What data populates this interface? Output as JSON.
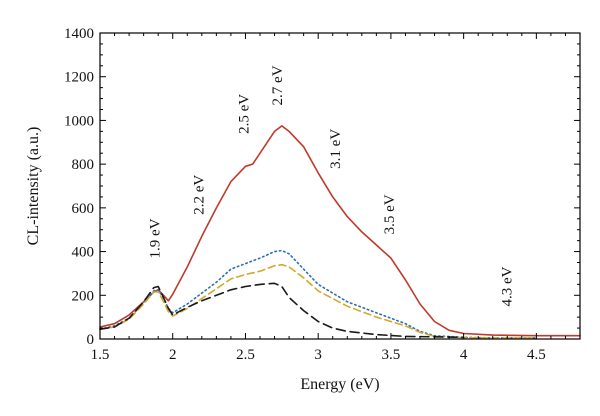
{
  "chart_data": {
    "type": "line",
    "title": "",
    "xlabel": "Energy (eV)",
    "ylabel": "CL-intensity (a.u.)",
    "xlim": [
      1.5,
      4.8
    ],
    "ylim": [
      0,
      1400
    ],
    "x_ticks": [
      1.5,
      2,
      2.5,
      3,
      3.5,
      4,
      4.5
    ],
    "x_tick_labels": [
      "1.5",
      "2",
      "2.5",
      "3",
      "3.5",
      "4",
      "4.5"
    ],
    "y_ticks": [
      0,
      200,
      400,
      600,
      800,
      1000,
      1200,
      1400
    ],
    "y_tick_labels": [
      "0",
      "200",
      "400",
      "600",
      "800",
      "1000",
      "1200",
      "1400"
    ],
    "grid": false,
    "series": [
      {
        "color": "#c0392b",
        "dash": "solid",
        "x": [
          1.5,
          1.6,
          1.7,
          1.8,
          1.87,
          1.9,
          1.93,
          1.97,
          2.0,
          2.1,
          2.2,
          2.3,
          2.4,
          2.5,
          2.55,
          2.6,
          2.7,
          2.75,
          2.8,
          2.9,
          3.0,
          3.1,
          3.2,
          3.3,
          3.4,
          3.5,
          3.6,
          3.7,
          3.8,
          3.9,
          4.0,
          4.2,
          4.5,
          4.8
        ],
        "y": [
          55,
          70,
          110,
          170,
          215,
          225,
          205,
          175,
          205,
          330,
          470,
          600,
          720,
          790,
          800,
          850,
          950,
          975,
          950,
          880,
          760,
          650,
          560,
          490,
          430,
          370,
          270,
          160,
          80,
          40,
          25,
          18,
          15,
          15
        ]
      },
      {
        "color": "#2e6fb5",
        "dash": "dotted",
        "x": [
          1.5,
          1.6,
          1.7,
          1.8,
          1.87,
          1.9,
          1.93,
          1.97,
          2.0,
          2.1,
          2.2,
          2.3,
          2.4,
          2.5,
          2.6,
          2.7,
          2.75,
          2.8,
          2.9,
          3.0,
          3.2,
          3.4,
          3.6,
          3.7,
          3.8,
          4.0,
          4.2,
          4.5
        ],
        "y": [
          45,
          60,
          95,
          165,
          220,
          225,
          195,
          140,
          120,
          160,
          210,
          260,
          320,
          345,
          370,
          400,
          405,
          390,
          320,
          250,
          170,
          120,
          70,
          35,
          15,
          8,
          5,
          5
        ]
      },
      {
        "color": "#d4a82a",
        "dash": "dashed",
        "x": [
          1.5,
          1.6,
          1.7,
          1.8,
          1.87,
          1.9,
          1.93,
          1.97,
          2.0,
          2.1,
          2.2,
          2.3,
          2.4,
          2.5,
          2.6,
          2.7,
          2.75,
          2.8,
          2.9,
          3.0,
          3.2,
          3.4,
          3.6,
          3.7,
          3.8,
          4.0,
          4.2,
          4.5
        ],
        "y": [
          45,
          55,
          90,
          160,
          215,
          215,
          180,
          125,
          105,
          140,
          185,
          230,
          275,
          295,
          310,
          335,
          340,
          330,
          280,
          220,
          150,
          100,
          60,
          30,
          12,
          6,
          4,
          4
        ]
      },
      {
        "color": "#1a1a1a",
        "dash": "longdash",
        "x": [
          1.5,
          1.6,
          1.7,
          1.8,
          1.87,
          1.9,
          1.93,
          1.97,
          2.0,
          2.1,
          2.2,
          2.3,
          2.4,
          2.5,
          2.6,
          2.7,
          2.75,
          2.8,
          2.9,
          3.0,
          3.1,
          3.2,
          3.4,
          3.6,
          4.0
        ],
        "y": [
          45,
          55,
          95,
          170,
          235,
          240,
          200,
          140,
          110,
          145,
          175,
          200,
          225,
          240,
          250,
          255,
          240,
          190,
          130,
          80,
          50,
          35,
          20,
          12,
          8
        ]
      }
    ],
    "annotations": [
      {
        "text": "1.9 eV",
        "x": 1.91,
        "y": 460
      },
      {
        "text": "2.2 eV",
        "x": 2.21,
        "y": 660
      },
      {
        "text": "2.5 eV",
        "x": 2.52,
        "y": 1030
      },
      {
        "text": "2.7 eV",
        "x": 2.75,
        "y": 1160
      },
      {
        "text": "3.1 eV",
        "x": 3.15,
        "y": 870
      },
      {
        "text": "3.5 eV",
        "x": 3.52,
        "y": 570
      },
      {
        "text": "4.3 eV",
        "x": 4.33,
        "y": 240
      }
    ]
  }
}
